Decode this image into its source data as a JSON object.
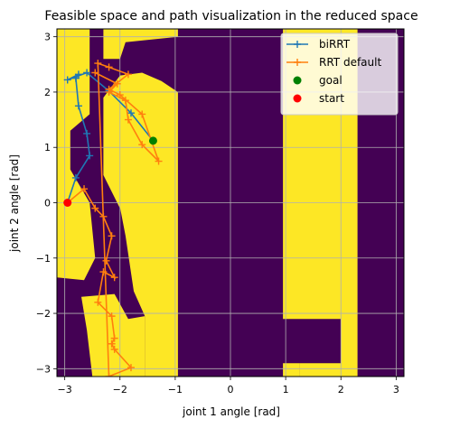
{
  "chart_data": {
    "type": "line",
    "title": "Feasible space and path visualization in the reduced space",
    "xlabel": "joint 1 angle [rad]",
    "ylabel": "joint 2 angle [rad]",
    "xlim": [
      -3.14159,
      3.14159
    ],
    "ylim": [
      -3.14159,
      3.14159
    ],
    "xticks": [
      -3,
      -2,
      -1,
      0,
      1,
      2,
      3
    ],
    "yticks": [
      -3,
      -2,
      -1,
      0,
      1,
      2,
      3
    ],
    "xtick_labels": [
      "−3",
      "−2",
      "−1",
      "0",
      "1",
      "2",
      "3"
    ],
    "ytick_labels": [
      "−3",
      "−2",
      "−1",
      "0",
      "1",
      "2",
      "3"
    ],
    "grid": true,
    "legend_position": "top-right",
    "background": {
      "feasible_color": "#fde725",
      "infeasible_color": "#440154",
      "feasible_regions": [
        [
          [
            -3.14,
            3.14
          ],
          [
            -2.55,
            3.14
          ],
          [
            -2.55,
            1.6
          ],
          [
            -2.9,
            1.3
          ],
          [
            -2.9,
            0.6
          ],
          [
            -2.55,
            0.0
          ],
          [
            -2.45,
            -1.0
          ],
          [
            -2.65,
            -1.4
          ],
          [
            -3.14,
            -1.35
          ]
        ],
        [
          [
            -2.3,
            3.14
          ],
          [
            -0.95,
            3.14
          ],
          [
            -0.95,
            3.0
          ],
          [
            -1.9,
            2.9
          ],
          [
            -2.0,
            2.6
          ],
          [
            -2.3,
            2.6
          ]
        ],
        [
          [
            -2.3,
            1.9
          ],
          [
            -2.0,
            2.3
          ],
          [
            -1.6,
            2.35
          ],
          [
            -1.25,
            2.2
          ],
          [
            -0.95,
            2.0
          ],
          [
            -0.95,
            -3.14
          ],
          [
            -1.55,
            -3.14
          ],
          [
            -1.55,
            -2.05
          ],
          [
            -1.75,
            -1.6
          ],
          [
            -1.9,
            -0.6
          ],
          [
            -2.15,
            0.7
          ],
          [
            -2.05,
            1.5
          ],
          [
            -1.85,
            1.75
          ],
          [
            -1.55,
            1.5
          ],
          [
            -1.4,
            1.1
          ],
          [
            -1.55,
            0.4
          ],
          [
            -1.95,
            -0.2
          ],
          [
            -2.3,
            0.5
          ]
        ],
        [
          [
            -2.7,
            -1.7
          ],
          [
            -2.1,
            -1.65
          ],
          [
            -1.85,
            -2.1
          ],
          [
            -1.55,
            -2.05
          ],
          [
            -1.55,
            -3.14
          ],
          [
            -2.5,
            -3.14
          ],
          [
            -2.6,
            -2.3
          ]
        ],
        [
          [
            0.95,
            3.14
          ],
          [
            2.3,
            3.14
          ],
          [
            2.3,
            -3.14
          ],
          [
            1.25,
            -3.14
          ],
          [
            1.25,
            -2.9
          ],
          [
            2.0,
            -2.9
          ],
          [
            2.0,
            -2.1
          ],
          [
            0.95,
            -2.1
          ]
        ],
        [
          [
            0.95,
            -2.9
          ],
          [
            1.25,
            -2.9
          ],
          [
            1.25,
            -3.14
          ],
          [
            0.95,
            -3.14
          ]
        ]
      ]
    },
    "series": [
      {
        "name": "biRRT",
        "color": "#1f77b4",
        "marker": "+",
        "x": [
          -2.95,
          -2.8,
          -2.55,
          -2.6,
          -2.75,
          -2.8,
          -2.75,
          -2.95,
          -2.6,
          -2.2,
          -1.8,
          -1.4
        ],
        "y": [
          0.0,
          0.45,
          0.85,
          1.25,
          1.75,
          2.25,
          2.32,
          2.22,
          2.35,
          2.02,
          1.62,
          1.12
        ]
      },
      {
        "name": "RRT default",
        "color": "#ff7f0e",
        "marker": "+",
        "x": [
          -2.95,
          -2.65,
          -2.45,
          -2.3,
          -2.15,
          -2.25,
          -2.1,
          -2.3,
          -2.4,
          -2.15,
          -2.1,
          -2.15,
          -2.1,
          -1.8,
          -2.2,
          -2.4,
          -2.2,
          -1.85,
          -2.2,
          -2.0,
          -1.6,
          -1.3,
          -1.6,
          -1.85,
          -1.9,
          -2.2,
          -2.05,
          -2.45
        ],
        "y": [
          0.0,
          0.25,
          -0.1,
          -0.25,
          -0.6,
          -1.05,
          -1.35,
          -1.25,
          -1.8,
          -2.05,
          -2.45,
          -2.55,
          -2.65,
          -2.98,
          -3.14,
          2.52,
          2.45,
          2.32,
          2.05,
          1.95,
          1.6,
          0.75,
          1.05,
          1.5,
          1.85,
          2.0,
          2.15,
          2.35
        ]
      },
      {
        "name": "goal",
        "color": "#008000",
        "marker": "o",
        "x": [
          -1.4
        ],
        "y": [
          1.12
        ]
      },
      {
        "name": "start",
        "color": "#ff0000",
        "marker": "o",
        "x": [
          -2.95
        ],
        "y": [
          0.0
        ]
      }
    ]
  }
}
